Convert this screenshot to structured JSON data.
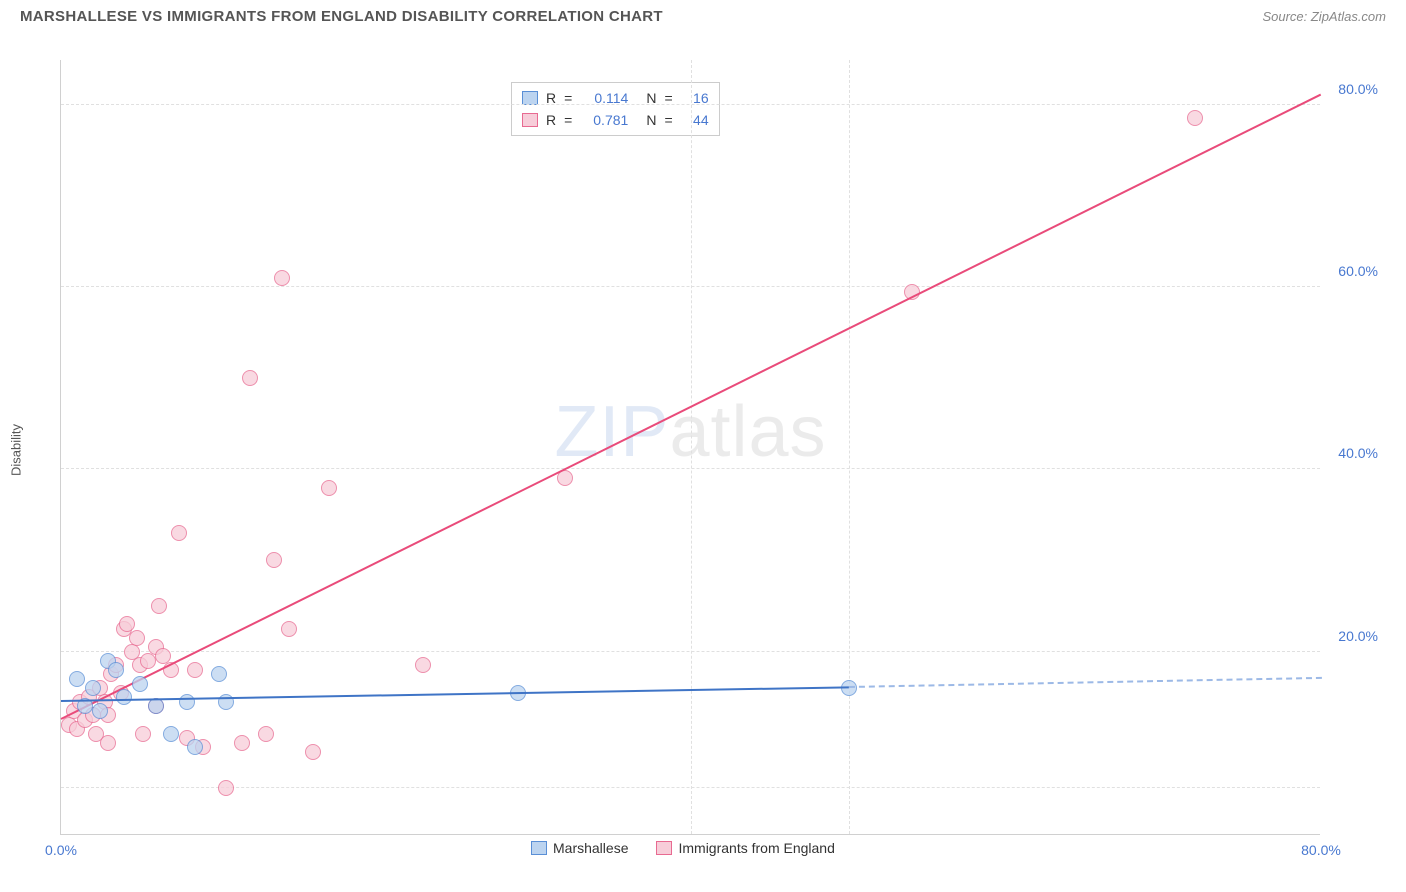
{
  "header": {
    "title": "MARSHALLESE VS IMMIGRANTS FROM ENGLAND DISABILITY CORRELATION CHART",
    "source_prefix": "Source: ",
    "source_name": "ZipAtlas.com"
  },
  "watermark": {
    "zip": "ZIP",
    "atlas": "atlas"
  },
  "chart": {
    "type": "scatter",
    "xlim": [
      0,
      80
    ],
    "ylim": [
      0,
      85
    ],
    "ylabel": "Disability",
    "xticks": [
      {
        "v": 0,
        "label": "0.0%"
      },
      {
        "v": 40,
        "label": ""
      },
      {
        "v": 80,
        "label": "80.0%"
      }
    ],
    "yticks": [
      {
        "v": 20,
        "label": "20.0%"
      },
      {
        "v": 40,
        "label": "40.0%"
      },
      {
        "v": 60,
        "label": "60.0%"
      },
      {
        "v": 80,
        "label": "80.0%"
      }
    ],
    "grid_h": [
      5,
      20,
      40,
      60,
      80
    ],
    "grid_v": [
      40,
      50
    ],
    "grid_color": "#e0e0e0",
    "background_color": "#ffffff",
    "marker_radius": 8,
    "marker_stroke_width": 1,
    "series": [
      {
        "key": "s1",
        "name": "Marshallese",
        "fill": "#bcd4f0",
        "stroke": "#5a8fd6",
        "line_color": "#3f74c6",
        "line_width": 2,
        "dash_color": "#9cb9e6",
        "R": "0.114",
        "N": "16",
        "trend": {
          "x1": 0,
          "y1": 14.5,
          "x2": 50,
          "y2": 16
        },
        "trend_dash": {
          "x1": 50,
          "y1": 16,
          "x2": 80,
          "y2": 17
        },
        "points": [
          {
            "x": 1.0,
            "y": 17.0
          },
          {
            "x": 1.5,
            "y": 14.0
          },
          {
            "x": 2.0,
            "y": 16.0
          },
          {
            "x": 2.5,
            "y": 13.5
          },
          {
            "x": 3.0,
            "y": 19.0
          },
          {
            "x": 3.5,
            "y": 18.0
          },
          {
            "x": 4.0,
            "y": 15.0
          },
          {
            "x": 5.0,
            "y": 16.5
          },
          {
            "x": 6.0,
            "y": 14.0
          },
          {
            "x": 7.0,
            "y": 11.0
          },
          {
            "x": 8.0,
            "y": 14.5
          },
          {
            "x": 10.0,
            "y": 17.5
          },
          {
            "x": 10.5,
            "y": 14.5
          },
          {
            "x": 8.5,
            "y": 9.5
          },
          {
            "x": 29.0,
            "y": 15.5
          },
          {
            "x": 50.0,
            "y": 16.0
          }
        ]
      },
      {
        "key": "s2",
        "name": "Immigrants from England",
        "fill": "#f7cdd9",
        "stroke": "#e86a91",
        "line_color": "#e94b7a",
        "line_width": 2,
        "R": "0.781",
        "N": "44",
        "trend": {
          "x1": 0,
          "y1": 12.5,
          "x2": 80,
          "y2": 81
        },
        "points": [
          {
            "x": 0.5,
            "y": 12.0
          },
          {
            "x": 0.8,
            "y": 13.5
          },
          {
            "x": 1.0,
            "y": 11.5
          },
          {
            "x": 1.2,
            "y": 14.5
          },
          {
            "x": 1.5,
            "y": 12.5
          },
          {
            "x": 1.8,
            "y": 15.0
          },
          {
            "x": 2.0,
            "y": 13.0
          },
          {
            "x": 2.2,
            "y": 11.0
          },
          {
            "x": 2.5,
            "y": 16.0
          },
          {
            "x": 2.8,
            "y": 14.5
          },
          {
            "x": 3.0,
            "y": 13.0
          },
          {
            "x": 3.2,
            "y": 17.5
          },
          {
            "x": 3.5,
            "y": 18.5
          },
          {
            "x": 3.8,
            "y": 15.5
          },
          {
            "x": 4.0,
            "y": 22.5
          },
          {
            "x": 4.2,
            "y": 23.0
          },
          {
            "x": 4.5,
            "y": 20.0
          },
          {
            "x": 4.8,
            "y": 21.5
          },
          {
            "x": 5.0,
            "y": 18.5
          },
          {
            "x": 5.2,
            "y": 11.0
          },
          {
            "x": 5.5,
            "y": 19.0
          },
          {
            "x": 6.0,
            "y": 20.5
          },
          {
            "x": 6.2,
            "y": 25.0
          },
          {
            "x": 6.5,
            "y": 19.5
          },
          {
            "x": 7.0,
            "y": 18.0
          },
          {
            "x": 7.5,
            "y": 33.0
          },
          {
            "x": 8.0,
            "y": 10.5
          },
          {
            "x": 8.5,
            "y": 18.0
          },
          {
            "x": 9.0,
            "y": 9.5
          },
          {
            "x": 10.5,
            "y": 5.0
          },
          {
            "x": 11.5,
            "y": 10.0
          },
          {
            "x": 12.0,
            "y": 50.0
          },
          {
            "x": 13.0,
            "y": 11.0
          },
          {
            "x": 13.5,
            "y": 30.0
          },
          {
            "x": 14.0,
            "y": 61.0
          },
          {
            "x": 14.5,
            "y": 22.5
          },
          {
            "x": 16.0,
            "y": 9.0
          },
          {
            "x": 17.0,
            "y": 38.0
          },
          {
            "x": 23.0,
            "y": 18.5
          },
          {
            "x": 32.0,
            "y": 39.0
          },
          {
            "x": 54.0,
            "y": 59.5
          },
          {
            "x": 72.0,
            "y": 78.5
          },
          {
            "x": 3.0,
            "y": 10.0
          },
          {
            "x": 6.0,
            "y": 14.0
          }
        ]
      }
    ],
    "legend_top": {
      "r_label": "R",
      "n_label": "N",
      "eq": "="
    },
    "legend_bottom": [
      {
        "series": "s1"
      },
      {
        "series": "s2"
      }
    ]
  }
}
